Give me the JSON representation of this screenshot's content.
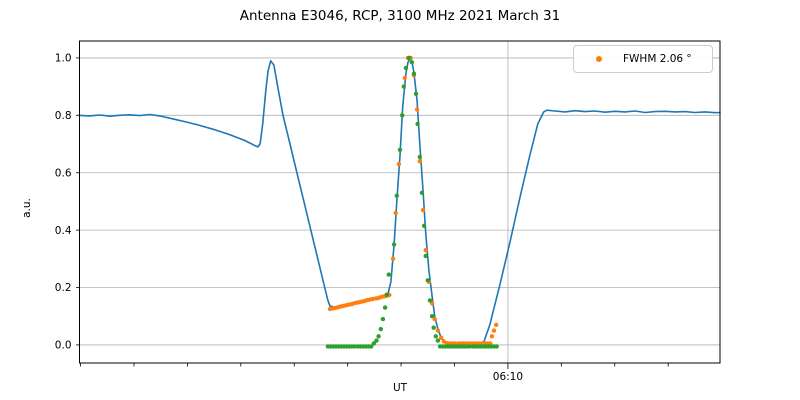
{
  "chart_data": {
    "type": "line",
    "title": "Antenna E3046, RCP, 3100 MHz 2021 March 31",
    "xlabel": "UT",
    "ylabel": "a.u.",
    "x_unit": "minutes relative to 06:10",
    "xlim": [
      -8.02,
      3.97
    ],
    "ylim": [
      -0.063,
      1.059
    ],
    "x_ticks": [
      -8,
      -7,
      -6,
      -5,
      -4,
      -3,
      -2,
      -1,
      0,
      1,
      2,
      3
    ],
    "x_major_tick": 0,
    "x_major_tick_label": "06:10",
    "y_ticks": [
      0.0,
      0.2,
      0.4,
      0.6,
      0.8,
      1.0
    ],
    "y_tick_labels": [
      "0.0",
      "0.2",
      "0.4",
      "0.6",
      "0.8",
      "1.0"
    ],
    "grid": {
      "color": "#b0b0b0",
      "y": "all-ticks",
      "x": "major-only"
    },
    "legend": {
      "label": "FWHM 2.06 °",
      "position": "upper-right",
      "marker": "dot",
      "marker_color": "#ff7f0e"
    },
    "colors": {
      "line": "#1f77b4",
      "fit_orange": "#ff7f0e",
      "fit_green": "#2ca02c",
      "spine": "#000000"
    },
    "series": [
      {
        "name": "drift-scan-line",
        "type": "line",
        "color": "#1f77b4",
        "points": [
          [
            -8.05,
            0.8
          ],
          [
            -7.83,
            0.798
          ],
          [
            -7.64,
            0.801
          ],
          [
            -7.45,
            0.797
          ],
          [
            -7.27,
            0.8
          ],
          [
            -7.08,
            0.802
          ],
          [
            -6.89,
            0.799
          ],
          [
            -6.7,
            0.803
          ],
          [
            -6.52,
            0.798
          ],
          [
            -6.33,
            0.79
          ],
          [
            -6.05,
            0.778
          ],
          [
            -5.77,
            0.765
          ],
          [
            -5.49,
            0.75
          ],
          [
            -5.21,
            0.733
          ],
          [
            -4.92,
            0.712
          ],
          [
            -4.74,
            0.695
          ],
          [
            -4.68,
            0.69
          ],
          [
            -4.64,
            0.7
          ],
          [
            -4.59,
            0.77
          ],
          [
            -4.53,
            0.89
          ],
          [
            -4.49,
            0.955
          ],
          [
            -4.44,
            0.99
          ],
          [
            -4.38,
            0.975
          ],
          [
            -4.31,
            0.9
          ],
          [
            -4.21,
            0.8
          ],
          [
            -4.08,
            0.7
          ],
          [
            -3.95,
            0.6
          ],
          [
            -3.82,
            0.5
          ],
          [
            -3.69,
            0.4
          ],
          [
            -3.56,
            0.3
          ],
          [
            -3.43,
            0.2
          ],
          [
            -3.37,
            0.155
          ],
          [
            -3.33,
            0.135
          ],
          [
            -3.24,
            0.132
          ],
          [
            -3.15,
            0.137
          ],
          [
            -2.96,
            0.144
          ],
          [
            -2.77,
            0.152
          ],
          [
            -2.58,
            0.159
          ],
          [
            -2.4,
            0.166
          ],
          [
            -2.25,
            0.174
          ],
          [
            -2.19,
            0.22
          ],
          [
            -2.13,
            0.35
          ],
          [
            -2.08,
            0.5
          ],
          [
            -2.02,
            0.66
          ],
          [
            -1.97,
            0.83
          ],
          [
            -1.91,
            0.945
          ],
          [
            -1.87,
            0.985
          ],
          [
            -1.83,
            1.0
          ],
          [
            -1.8,
            0.99
          ],
          [
            -1.76,
            0.95
          ],
          [
            -1.7,
            0.85
          ],
          [
            -1.65,
            0.7
          ],
          [
            -1.59,
            0.54
          ],
          [
            -1.54,
            0.39
          ],
          [
            -1.48,
            0.26
          ],
          [
            -1.42,
            0.17
          ],
          [
            -1.37,
            0.1
          ],
          [
            -1.31,
            0.055
          ],
          [
            -1.25,
            0.025
          ],
          [
            -1.18,
            0.008
          ],
          [
            -1.09,
            -0.003
          ],
          [
            -0.9,
            -0.005
          ],
          [
            -0.71,
            -0.005
          ],
          [
            -0.56,
            -0.003
          ],
          [
            -0.47,
            0.0
          ],
          [
            -0.34,
            0.07
          ],
          [
            -0.15,
            0.21
          ],
          [
            0.04,
            0.36
          ],
          [
            0.22,
            0.51
          ],
          [
            0.41,
            0.66
          ],
          [
            0.56,
            0.77
          ],
          [
            0.67,
            0.812
          ],
          [
            0.73,
            0.818
          ],
          [
            0.88,
            0.815
          ],
          [
            1.07,
            0.812
          ],
          [
            1.25,
            0.816
          ],
          [
            1.44,
            0.813
          ],
          [
            1.63,
            0.815
          ],
          [
            1.82,
            0.811
          ],
          [
            2.0,
            0.814
          ],
          [
            2.19,
            0.812
          ],
          [
            2.38,
            0.815
          ],
          [
            2.57,
            0.81
          ],
          [
            2.75,
            0.813
          ],
          [
            2.94,
            0.814
          ],
          [
            3.13,
            0.812
          ],
          [
            3.31,
            0.813
          ],
          [
            3.5,
            0.81
          ],
          [
            3.69,
            0.812
          ],
          [
            3.88,
            0.809
          ],
          [
            3.97,
            0.81
          ]
        ]
      },
      {
        "name": "fwhm-fit-orange",
        "type": "scatter",
        "color": "#ff7f0e",
        "in_legend": true,
        "points": [
          [
            -3.33,
            0.125
          ],
          [
            -3.28,
            0.127
          ],
          [
            -3.23,
            0.129
          ],
          [
            -3.18,
            0.131
          ],
          [
            -3.13,
            0.134
          ],
          [
            -3.08,
            0.136
          ],
          [
            -3.03,
            0.138
          ],
          [
            -2.98,
            0.14
          ],
          [
            -2.93,
            0.142
          ],
          [
            -2.88,
            0.145
          ],
          [
            -2.83,
            0.147
          ],
          [
            -2.78,
            0.149
          ],
          [
            -2.73,
            0.151
          ],
          [
            -2.68,
            0.153
          ],
          [
            -2.63,
            0.156
          ],
          [
            -2.58,
            0.158
          ],
          [
            -2.53,
            0.16
          ],
          [
            -2.47,
            0.162
          ],
          [
            -2.42,
            0.164
          ],
          [
            -2.37,
            0.167
          ],
          [
            -2.32,
            0.169
          ],
          [
            -2.27,
            0.171
          ],
          [
            -2.22,
            0.174
          ],
          [
            -2.15,
            0.3
          ],
          [
            -2.1,
            0.46
          ],
          [
            -2.04,
            0.63
          ],
          [
            -1.98,
            0.8
          ],
          [
            -1.93,
            0.93
          ],
          [
            -1.87,
            1.0
          ],
          [
            -1.82,
            1.0
          ],
          [
            -1.76,
            0.94
          ],
          [
            -1.7,
            0.82
          ],
          [
            -1.65,
            0.64
          ],
          [
            -1.59,
            0.47
          ],
          [
            -1.54,
            0.33
          ],
          [
            -1.48,
            0.22
          ],
          [
            -1.42,
            0.145
          ],
          [
            -1.37,
            0.09
          ],
          [
            -1.31,
            0.05
          ],
          [
            -1.25,
            0.025
          ],
          [
            -1.2,
            0.012
          ],
          [
            -1.14,
            0.006
          ],
          [
            -1.09,
            0.005
          ],
          [
            -1.04,
            0.005
          ],
          [
            -0.99,
            0.005
          ],
          [
            -0.93,
            0.005
          ],
          [
            -0.88,
            0.005
          ],
          [
            -0.83,
            0.005
          ],
          [
            -0.78,
            0.005
          ],
          [
            -0.73,
            0.005
          ],
          [
            -0.68,
            0.005
          ],
          [
            -0.63,
            0.005
          ],
          [
            -0.58,
            0.005
          ],
          [
            -0.53,
            0.005
          ],
          [
            -0.48,
            0.005
          ],
          [
            -0.43,
            0.005
          ],
          [
            -0.38,
            0.005
          ],
          [
            -0.33,
            0.005
          ],
          [
            -0.3,
            0.03
          ],
          [
            -0.26,
            0.05
          ],
          [
            -0.22,
            0.07
          ]
        ]
      },
      {
        "name": "fit-green",
        "type": "scatter",
        "color": "#2ca02c",
        "points": [
          [
            -3.37,
            -0.005
          ],
          [
            -3.32,
            -0.005
          ],
          [
            -3.27,
            -0.005
          ],
          [
            -3.22,
            -0.005
          ],
          [
            -3.17,
            -0.005
          ],
          [
            -3.12,
            -0.005
          ],
          [
            -3.07,
            -0.005
          ],
          [
            -3.02,
            -0.005
          ],
          [
            -2.97,
            -0.005
          ],
          [
            -2.92,
            -0.005
          ],
          [
            -2.87,
            -0.005
          ],
          [
            -2.81,
            -0.005
          ],
          [
            -2.76,
            -0.005
          ],
          [
            -2.71,
            -0.005
          ],
          [
            -2.66,
            -0.005
          ],
          [
            -2.61,
            -0.005
          ],
          [
            -2.56,
            -0.005
          ],
          [
            -2.51,
            0.005
          ],
          [
            -2.46,
            0.015
          ],
          [
            -2.42,
            0.03
          ],
          [
            -2.38,
            0.055
          ],
          [
            -2.34,
            0.09
          ],
          [
            -2.3,
            0.13
          ],
          [
            -2.27,
            0.175
          ],
          [
            -2.23,
            0.245
          ],
          [
            -2.13,
            0.35
          ],
          [
            -2.08,
            0.52
          ],
          [
            -2.02,
            0.68
          ],
          [
            -1.98,
            0.8
          ],
          [
            -1.95,
            0.9
          ],
          [
            -1.91,
            0.965
          ],
          [
            -1.85,
            1.0
          ],
          [
            -1.8,
            0.985
          ],
          [
            -1.76,
            0.945
          ],
          [
            -1.72,
            0.875
          ],
          [
            -1.69,
            0.77
          ],
          [
            -1.65,
            0.655
          ],
          [
            -1.61,
            0.53
          ],
          [
            -1.57,
            0.415
          ],
          [
            -1.54,
            0.31
          ],
          [
            -1.5,
            0.225
          ],
          [
            -1.46,
            0.155
          ],
          [
            -1.42,
            0.1
          ],
          [
            -1.39,
            0.06
          ],
          [
            -1.35,
            0.03
          ],
          [
            -1.31,
            0.015
          ],
          [
            -1.27,
            -0.005
          ],
          [
            -1.22,
            -0.005
          ],
          [
            -1.17,
            -0.005
          ],
          [
            -1.12,
            -0.005
          ],
          [
            -1.07,
            -0.005
          ],
          [
            -1.02,
            -0.005
          ],
          [
            -0.97,
            -0.005
          ],
          [
            -0.92,
            -0.005
          ],
          [
            -0.87,
            -0.005
          ],
          [
            -0.82,
            -0.005
          ],
          [
            -0.77,
            -0.005
          ],
          [
            -0.72,
            -0.005
          ],
          [
            -0.66,
            -0.005
          ],
          [
            -0.61,
            -0.005
          ],
          [
            -0.56,
            -0.005
          ],
          [
            -0.51,
            -0.005
          ],
          [
            -0.46,
            -0.005
          ],
          [
            -0.41,
            -0.005
          ],
          [
            -0.36,
            -0.005
          ],
          [
            -0.31,
            -0.005
          ],
          [
            -0.26,
            -0.005
          ],
          [
            -0.21,
            -0.005
          ]
        ]
      }
    ]
  }
}
